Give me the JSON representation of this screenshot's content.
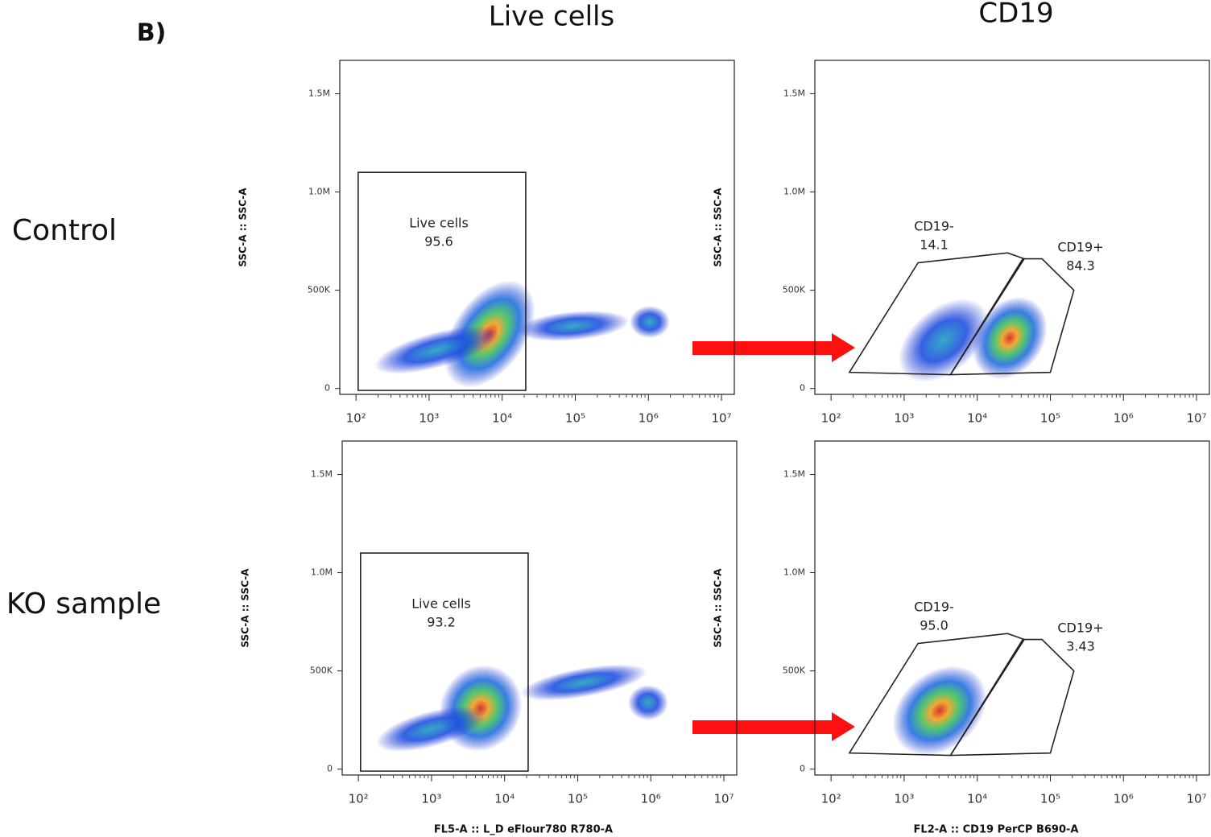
{
  "panel_label": "B)",
  "column_titles": [
    "Live cells",
    "CD19"
  ],
  "row_labels": [
    "Control",
    "KO sample"
  ],
  "chart_data": [
    {
      "type": "scatter",
      "y_label": "SSC-A :: SSC-A",
      "log_x": true,
      "xlim": [
        60,
        15000000
      ],
      "ylim": [
        -30000,
        1670000
      ],
      "xticks": [
        {
          "value": 100,
          "label": "10²"
        },
        {
          "value": 1000,
          "label": "10³"
        },
        {
          "value": 10000,
          "label": "10⁴"
        },
        {
          "value": 100000,
          "label": "10⁵"
        },
        {
          "value": 1000000,
          "label": "10⁶"
        },
        {
          "value": 10000000,
          "label": "10⁷"
        }
      ],
      "yticks": [
        0,
        {
          "value": 500000,
          "label": "500K"
        },
        {
          "value": 1000000,
          "label": "1.0M"
        },
        {
          "value": 1500000,
          "label": "1.5M"
        }
      ],
      "gates": [
        {
          "name": "Live cells",
          "value": 95.6,
          "vertices": [
            [
              107,
              -10000
            ],
            [
              21000,
              -10000
            ],
            [
              21000,
              1100000
            ],
            [
              107,
              1100000
            ]
          ]
        }
      ]
    },
    {
      "type": "scatter",
      "y_label": "SSC-A :: SSC-A",
      "log_x": true,
      "xlim": [
        60,
        15000000
      ],
      "ylim": [
        -30000,
        1670000
      ],
      "xticks": [
        {
          "value": 100,
          "label": "10²"
        },
        {
          "value": 1000,
          "label": "10³"
        },
        {
          "value": 10000,
          "label": "10⁴"
        },
        {
          "value": 100000,
          "label": "10⁵"
        },
        {
          "value": 1000000,
          "label": "10⁶"
        },
        {
          "value": 10000000,
          "label": "10⁷"
        }
      ],
      "yticks": [
        0,
        {
          "value": 500000,
          "label": "500K"
        },
        {
          "value": 1000000,
          "label": "1.0M"
        },
        {
          "value": 1500000,
          "label": "1.5M"
        }
      ],
      "gates": [
        {
          "name": "CD19-",
          "value": 14.1,
          "vertices": [
            [
              178,
              82000
            ],
            [
              1550,
              640000
            ],
            [
              26000,
              690000
            ],
            [
              44000,
              660000
            ],
            [
              4300,
              70000
            ]
          ]
        },
        {
          "name": "CD19+",
          "value": 84.3,
          "vertices": [
            [
              4300,
              70000
            ],
            [
              42000,
              660000
            ],
            [
              77000,
              660000
            ],
            [
              210000,
              500000
            ],
            [
              100000,
              82000
            ]
          ]
        }
      ]
    },
    {
      "type": "scatter",
      "x_label": "FL5-A :: L_D eFlour780 R780-A",
      "y_label": "SSC-A :: SSC-A",
      "log_x": true,
      "xlim": [
        60,
        15000000
      ],
      "ylim": [
        -30000,
        1670000
      ],
      "xticks": [
        {
          "value": 100,
          "label": "10²"
        },
        {
          "value": 1000,
          "label": "10³"
        },
        {
          "value": 10000,
          "label": "10⁴"
        },
        {
          "value": 100000,
          "label": "10⁵"
        },
        {
          "value": 1000000,
          "label": "10⁶"
        },
        {
          "value": 10000000,
          "label": "10⁷"
        }
      ],
      "yticks": [
        0,
        {
          "value": 500000,
          "label": "500K"
        },
        {
          "value": 1000000,
          "label": "1.0M"
        },
        {
          "value": 1500000,
          "label": "1.5M"
        }
      ],
      "gates": [
        {
          "name": "Live cells",
          "value": 93.2,
          "vertices": [
            [
              107,
              -10000
            ],
            [
              21000,
              -10000
            ],
            [
              21000,
              1100000
            ],
            [
              107,
              1100000
            ]
          ]
        }
      ]
    },
    {
      "type": "scatter",
      "x_label": "FL2-A :: CD19 PerCP B690-A",
      "y_label": "SSC-A :: SSC-A",
      "log_x": true,
      "xlim": [
        60,
        15000000
      ],
      "ylim": [
        -30000,
        1670000
      ],
      "xticks": [
        {
          "value": 100,
          "label": "10²"
        },
        {
          "value": 1000,
          "label": "10³"
        },
        {
          "value": 10000,
          "label": "10⁴"
        },
        {
          "value": 100000,
          "label": "10⁵"
        },
        {
          "value": 1000000,
          "label": "10⁶"
        },
        {
          "value": 10000000,
          "label": "10⁷"
        }
      ],
      "yticks": [
        0,
        {
          "value": 500000,
          "label": "500K"
        },
        {
          "value": 1000000,
          "label": "1.0M"
        },
        {
          "value": 1500000,
          "label": "1.5M"
        }
      ],
      "gates": [
        {
          "name": "CD19-",
          "value": 95.0,
          "value_label": "95.0",
          "vertices": [
            [
              178,
              82000
            ],
            [
              1550,
              640000
            ],
            [
              26000,
              690000
            ],
            [
              44000,
              660000
            ],
            [
              4300,
              70000
            ]
          ]
        },
        {
          "name": "CD19+",
          "value": 3.43,
          "vertices": [
            [
              4300,
              70000
            ],
            [
              42000,
              660000
            ],
            [
              77000,
              660000
            ],
            [
              210000,
              500000
            ],
            [
              100000,
              82000
            ]
          ]
        }
      ]
    }
  ]
}
